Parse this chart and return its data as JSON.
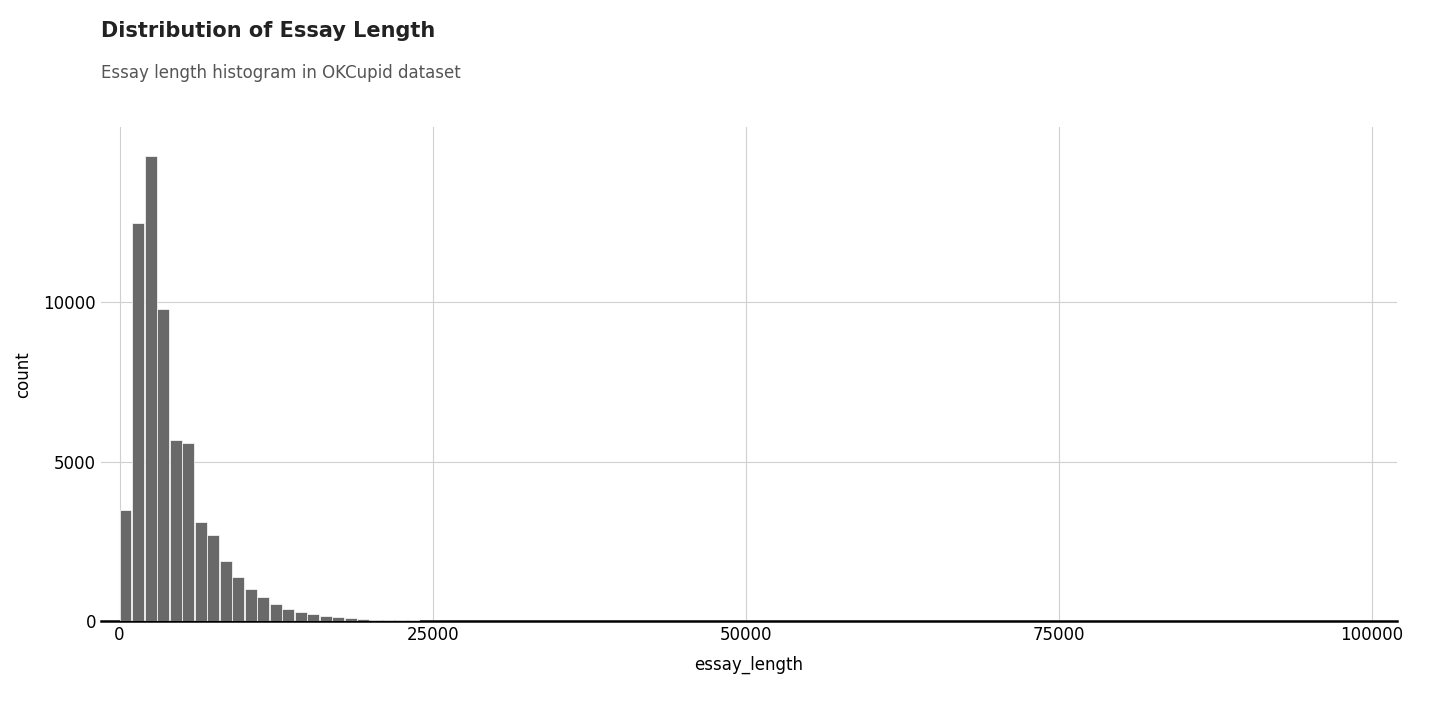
{
  "title": "Distribution of Essay Length",
  "subtitle": "Essay length histogram in OKCupid dataset",
  "xlabel": "essay_length",
  "ylabel": "count",
  "bar_color": "#696969",
  "bar_edgecolor": "#ffffff",
  "background_color": "#ffffff",
  "xlim": [
    -1500,
    102000
  ],
  "ylim": [
    0,
    15500
  ],
  "xticks": [
    0,
    25000,
    50000,
    75000,
    100000
  ],
  "yticks": [
    0,
    5000,
    10000
  ],
  "grid_color": "#d0d0d0",
  "bin_width": 1000,
  "bar_heights": [
    3500,
    12500,
    14600,
    9800,
    5700,
    5600,
    3100,
    2700,
    1900,
    1400,
    1000,
    750,
    550,
    400,
    300,
    220,
    160,
    120,
    90,
    70,
    55,
    45,
    35,
    28,
    22,
    18,
    14,
    11,
    9,
    7,
    6,
    5,
    4,
    3,
    3,
    2,
    2,
    2,
    1,
    1,
    1,
    1,
    1,
    1,
    1,
    0,
    0,
    0,
    0,
    0,
    0,
    0,
    0,
    0,
    0,
    0,
    0,
    0,
    0,
    0,
    0,
    0,
    0,
    0,
    0,
    0,
    0,
    0,
    0,
    0,
    0,
    0,
    0,
    0,
    0,
    0,
    0,
    0,
    0,
    0,
    0,
    0,
    0,
    0,
    0,
    0,
    0,
    0,
    0,
    0,
    0,
    0,
    0,
    0,
    0,
    0,
    0,
    0,
    0,
    0
  ],
  "title_fontsize": 15,
  "subtitle_fontsize": 12,
  "axis_label_fontsize": 12,
  "tick_fontsize": 12
}
